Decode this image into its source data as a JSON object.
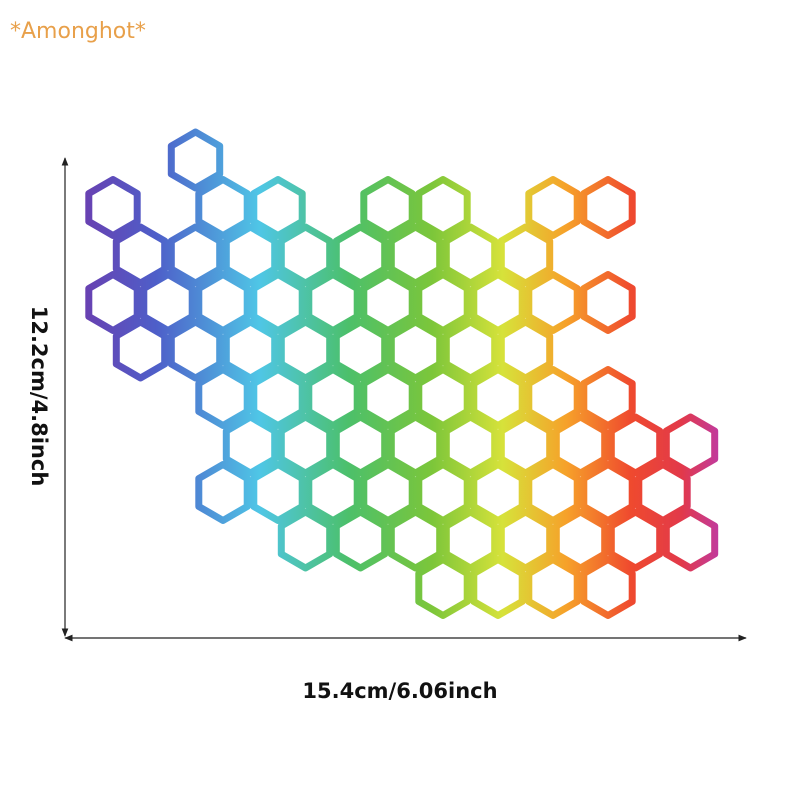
{
  "watermark": "*Amonghot*",
  "height_label": "12.2cm/4.8inch",
  "width_label": "15.4cm/6.06inch"
}
